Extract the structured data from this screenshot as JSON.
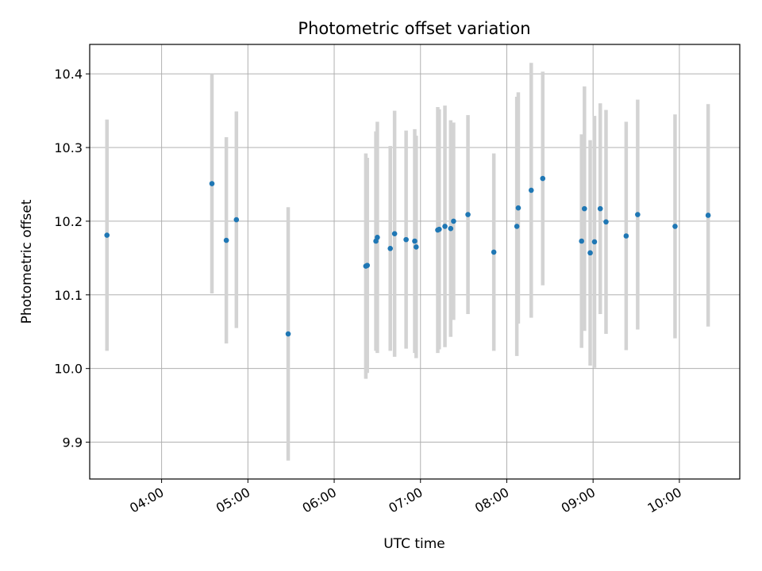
{
  "chart_data": {
    "type": "scatter",
    "title": "Photometric offset variation",
    "xlabel": "UTC time",
    "ylabel": "Photometric offset",
    "x_format": "HH:MM",
    "xlim": [
      "03:10",
      "10:42"
    ],
    "ylim": [
      9.85,
      10.44
    ],
    "x_ticks": [
      "04:00",
      "05:00",
      "06:00",
      "07:00",
      "08:00",
      "09:00",
      "10:00"
    ],
    "y_ticks": [
      "9.9",
      "10.0",
      "10.1",
      "10.2",
      "10.3",
      "10.4"
    ],
    "grid": true,
    "colors": {
      "points": "#1f77b4",
      "error_bars": "#d3d3d3",
      "grid": "#b0b0b0"
    },
    "points": [
      {
        "x": "03:22",
        "y": 10.181,
        "yerr": 0.157
      },
      {
        "x": "04:35",
        "y": 10.251,
        "yerr": 0.149
      },
      {
        "x": "04:45",
        "y": 10.174,
        "yerr": 0.14
      },
      {
        "x": "04:52",
        "y": 10.202,
        "yerr": 0.147
      },
      {
        "x": "05:28",
        "y": 10.047,
        "yerr": 0.172
      },
      {
        "x": "06:22",
        "y": 10.139,
        "yerr": 0.153
      },
      {
        "x": "06:23",
        "y": 10.14,
        "yerr": 0.146
      },
      {
        "x": "06:29",
        "y": 10.173,
        "yerr": 0.149
      },
      {
        "x": "06:30",
        "y": 10.178,
        "yerr": 0.157
      },
      {
        "x": "06:39",
        "y": 10.163,
        "yerr": 0.139
      },
      {
        "x": "06:42",
        "y": 10.183,
        "yerr": 0.167
      },
      {
        "x": "06:50",
        "y": 10.175,
        "yerr": 0.148
      },
      {
        "x": "06:56",
        "y": 10.173,
        "yerr": 0.152
      },
      {
        "x": "06:57",
        "y": 10.165,
        "yerr": 0.151
      },
      {
        "x": "07:12",
        "y": 10.188,
        "yerr": 0.167
      },
      {
        "x": "07:13",
        "y": 10.189,
        "yerr": 0.163
      },
      {
        "x": "07:17",
        "y": 10.193,
        "yerr": 0.164
      },
      {
        "x": "07:21",
        "y": 10.19,
        "yerr": 0.147
      },
      {
        "x": "07:23",
        "y": 10.2,
        "yerr": 0.134
      },
      {
        "x": "07:33",
        "y": 10.209,
        "yerr": 0.135
      },
      {
        "x": "07:51",
        "y": 10.158,
        "yerr": 0.134
      },
      {
        "x": "08:07",
        "y": 10.193,
        "yerr": 0.176
      },
      {
        "x": "08:08",
        "y": 10.218,
        "yerr": 0.157
      },
      {
        "x": "08:17",
        "y": 10.242,
        "yerr": 0.173
      },
      {
        "x": "08:25",
        "y": 10.258,
        "yerr": 0.145
      },
      {
        "x": "08:52",
        "y": 10.173,
        "yerr": 0.145
      },
      {
        "x": "08:54",
        "y": 10.217,
        "yerr": 0.166
      },
      {
        "x": "08:58",
        "y": 10.157,
        "yerr": 0.153
      },
      {
        "x": "09:01",
        "y": 10.172,
        "yerr": 0.171
      },
      {
        "x": "09:05",
        "y": 10.217,
        "yerr": 0.143
      },
      {
        "x": "09:09",
        "y": 10.199,
        "yerr": 0.152
      },
      {
        "x": "09:23",
        "y": 10.18,
        "yerr": 0.155
      },
      {
        "x": "09:31",
        "y": 10.209,
        "yerr": 0.156
      },
      {
        "x": "09:57",
        "y": 10.193,
        "yerr": 0.152
      },
      {
        "x": "10:20",
        "y": 10.208,
        "yerr": 0.151
      }
    ]
  }
}
